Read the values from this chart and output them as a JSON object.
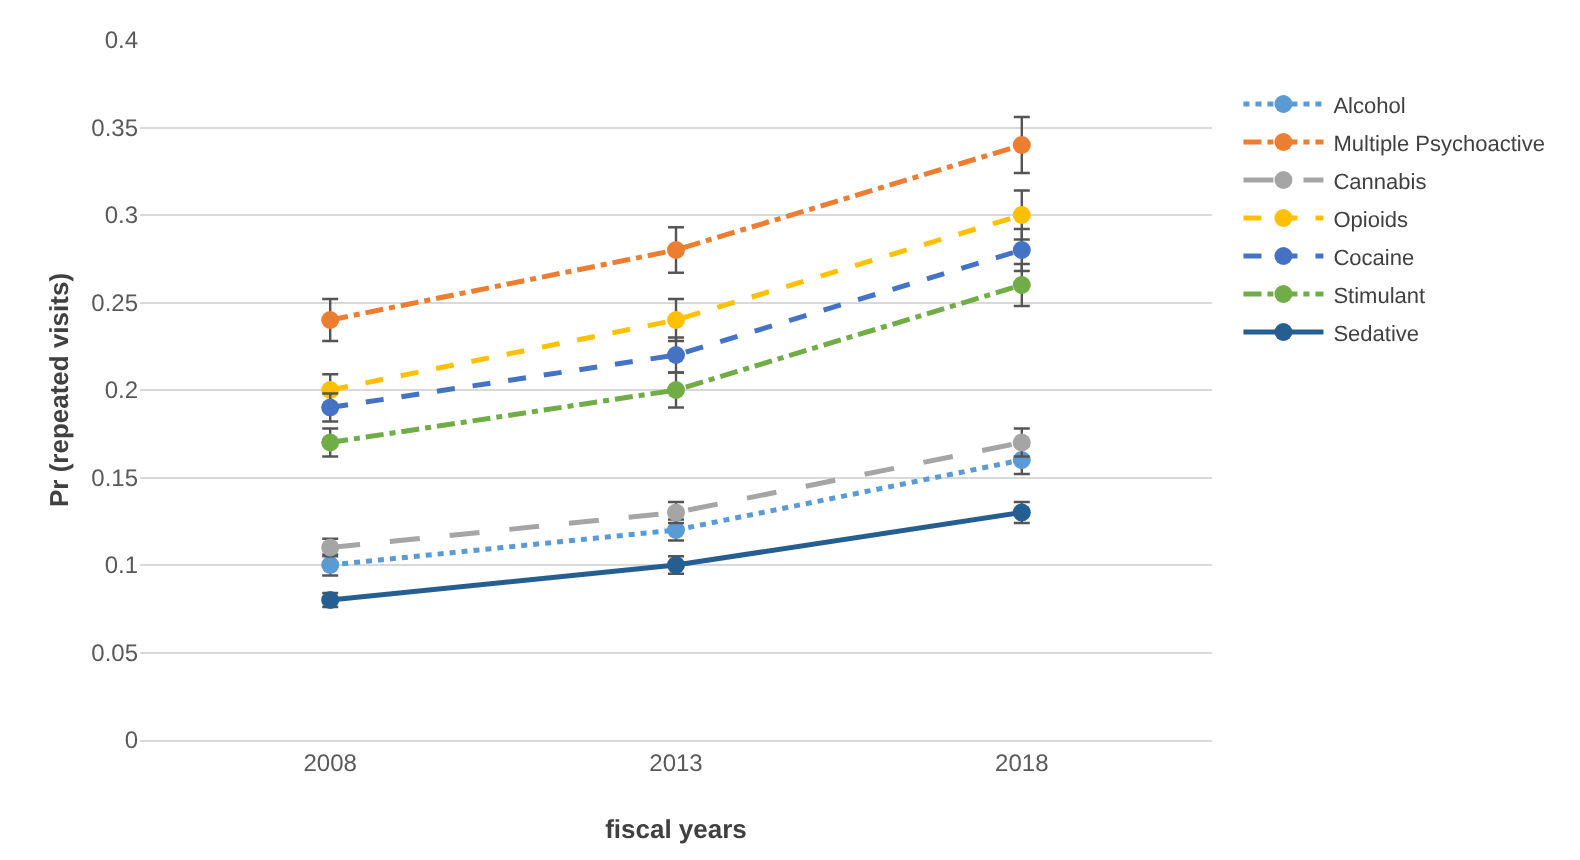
{
  "chart_data": {
    "type": "line",
    "xlabel": "fiscal years",
    "ylabel": "Pr (repeated visits)",
    "categories": [
      "2008",
      "2013",
      "2018"
    ],
    "ylim": [
      0,
      0.4
    ],
    "yticks": [
      0,
      0.05,
      0.1,
      0.15,
      0.2,
      0.25,
      0.3,
      0.35,
      0.4
    ],
    "grid": "y",
    "legend": "right",
    "marker": "circle",
    "series": [
      {
        "name": "Alcohol",
        "color": "#5b9bd5",
        "line_style": "dotted",
        "values": [
          0.1,
          0.12,
          0.16
        ],
        "errors": [
          0.006,
          0.006,
          0.008
        ]
      },
      {
        "name": "Multiple Psychoactive",
        "color": "#ed7d31",
        "line_style": "dashdot",
        "values": [
          0.24,
          0.28,
          0.34
        ],
        "errors": [
          0.012,
          0.013,
          0.016
        ]
      },
      {
        "name": "Cannabis",
        "color": "#a5a5a5",
        "line_style": "longdash",
        "values": [
          0.11,
          0.13,
          0.17
        ],
        "errors": [
          0.005,
          0.006,
          0.008
        ]
      },
      {
        "name": "Opioids",
        "color": "#ffc000",
        "line_style": "dashed",
        "values": [
          0.2,
          0.24,
          0.3
        ],
        "errors": [
          0.009,
          0.012,
          0.014
        ]
      },
      {
        "name": "Cocaine",
        "color": "#4472c4",
        "line_style": "dashed",
        "values": [
          0.19,
          0.22,
          0.28
        ],
        "errors": [
          0.008,
          0.01,
          0.012
        ]
      },
      {
        "name": "Stimulant",
        "color": "#70ad47",
        "line_style": "dashdot",
        "values": [
          0.17,
          0.2,
          0.26
        ],
        "errors": [
          0.008,
          0.01,
          0.012
        ]
      },
      {
        "name": "Sedative",
        "color": "#255e91",
        "line_style": "solid",
        "values": [
          0.08,
          0.1,
          0.13
        ],
        "errors": [
          0.004,
          0.005,
          0.006
        ]
      }
    ]
  }
}
